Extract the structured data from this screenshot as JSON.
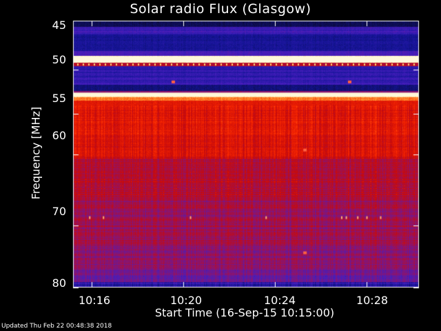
{
  "title": "Solar radio Flux (Glasgow)",
  "footer": "Updated Thu Feb 22 00:48:38 2018",
  "chart_data": {
    "type": "heatmap",
    "title": "Solar radio Flux (Glasgow)",
    "xlabel": "Start Time (16-Sep-15 10:15:00)",
    "ylabel": "Frequency [MHz]",
    "x_ticks": [
      "10:16",
      "10:20",
      "10:24",
      "10:28"
    ],
    "x_tick_minutes": [
      1,
      5,
      9,
      13
    ],
    "xlim_minutes": [
      0.2,
      15.3
    ],
    "y_ticks": [
      45,
      50,
      55,
      60,
      70,
      80
    ],
    "ylim": [
      45,
      80
    ],
    "y_scale": "log",
    "colormap": "black-blue-red-yellow-white",
    "colors": {
      "low": "#0000a0",
      "mid": "#c00000",
      "high": "#ffff80"
    },
    "bands_mhz": [
      {
        "from": 45,
        "to": 46.5,
        "level": "low"
      },
      {
        "from": 48.5,
        "to": 49.5,
        "level": "very-high"
      },
      {
        "from": 52.5,
        "to": 53.0,
        "level": "very-high"
      },
      {
        "from": 53.0,
        "to": 62,
        "level": "high"
      },
      {
        "from": 62,
        "to": 80,
        "level": "mid"
      }
    ]
  }
}
